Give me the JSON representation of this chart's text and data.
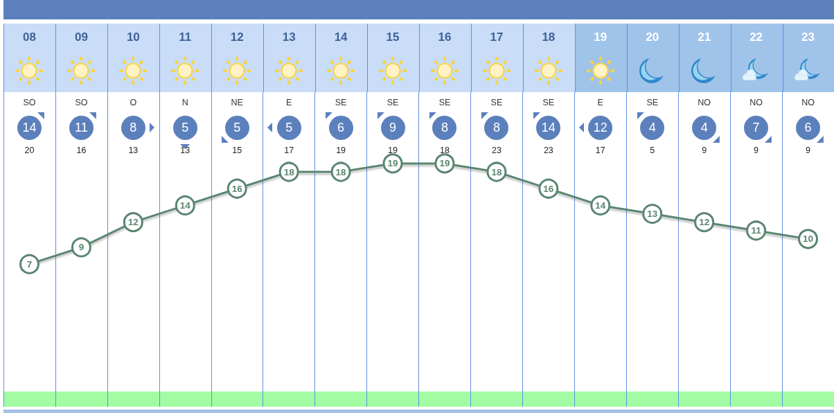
{
  "chart_data": {
    "type": "line",
    "categories": [
      "08",
      "09",
      "10",
      "11",
      "12",
      "13",
      "14",
      "15",
      "16",
      "17",
      "18",
      "19",
      "20",
      "21",
      "22",
      "23"
    ],
    "series": [
      {
        "color": "#5a8571",
        "values": [
          7,
          9,
          12,
          14,
          16,
          18,
          18,
          19,
          19,
          18,
          16,
          14,
          13,
          12,
          11,
          10
        ]
      }
    ],
    "ylim": [
      -10,
      27.5
    ],
    "tick_labels": "x",
    "grid": "x",
    "marker": "circle",
    "data_labels": true,
    "annotations": [
      "SO",
      "14",
      "20",
      "SO",
      "11",
      "16",
      "O",
      "8",
      "13",
      "N",
      "5",
      "13",
      "NE",
      "5",
      "15",
      "E",
      "5",
      "17",
      "SE",
      "6",
      "19",
      "SE",
      "9",
      "19",
      "SE",
      "8",
      "18",
      "SE",
      "8",
      "23",
      "SE",
      "14",
      "23",
      "E",
      "12",
      "17",
      "SE",
      "4",
      "5",
      "NO",
      "4",
      "9",
      "NO",
      "7",
      "9",
      "NO",
      "6",
      "9"
    ]
  }
}
